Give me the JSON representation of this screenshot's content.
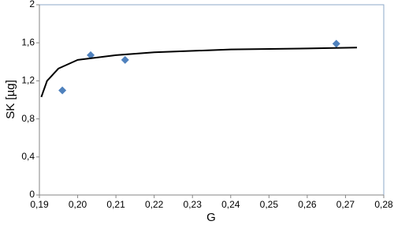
{
  "chart_data": {
    "type": "scatter",
    "x_label": "G",
    "y_label": "SK [µg]",
    "xlim": [
      0.19,
      0.28
    ],
    "xticks": [
      {
        "value": 0.19,
        "label": "0,19"
      },
      {
        "value": 0.2,
        "label": "0,20"
      },
      {
        "value": 0.21,
        "label": "0,21"
      },
      {
        "value": 0.22,
        "label": "0,22"
      },
      {
        "value": 0.23,
        "label": "0,23"
      },
      {
        "value": 0.24,
        "label": "0,24"
      },
      {
        "value": 0.25,
        "label": "0,25"
      },
      {
        "value": 0.26,
        "label": "0,26"
      },
      {
        "value": 0.27,
        "label": "0,27"
      },
      {
        "value": 0.28,
        "label": "0,28"
      }
    ],
    "ylim": [
      0,
      2
    ],
    "yticks": [
      0,
      {
        "value": 0.4,
        "label": "0,4"
      },
      {
        "value": 0.8,
        "label": "0,8"
      },
      {
        "value": 1.2,
        "label": "1,2"
      },
      {
        "value": 1.6,
        "label": "1,6"
      },
      2
    ],
    "grid": false,
    "series": [
      {
        "type": "scatter",
        "color": "#4f81bd",
        "x": [
          0.196,
          0.2034,
          0.2124,
          0.2676
        ],
        "values": [
          1.1,
          1.47,
          1.42,
          1.59
        ]
      },
      {
        "type": "line",
        "color": "#000000",
        "x": [
          0.1905,
          0.192,
          0.195,
          0.2,
          0.21,
          0.22,
          0.24,
          0.26,
          0.273
        ],
        "values": [
          1.03,
          1.2,
          1.33,
          1.42,
          1.47,
          1.5,
          1.53,
          1.54,
          1.55
        ]
      }
    ]
  }
}
